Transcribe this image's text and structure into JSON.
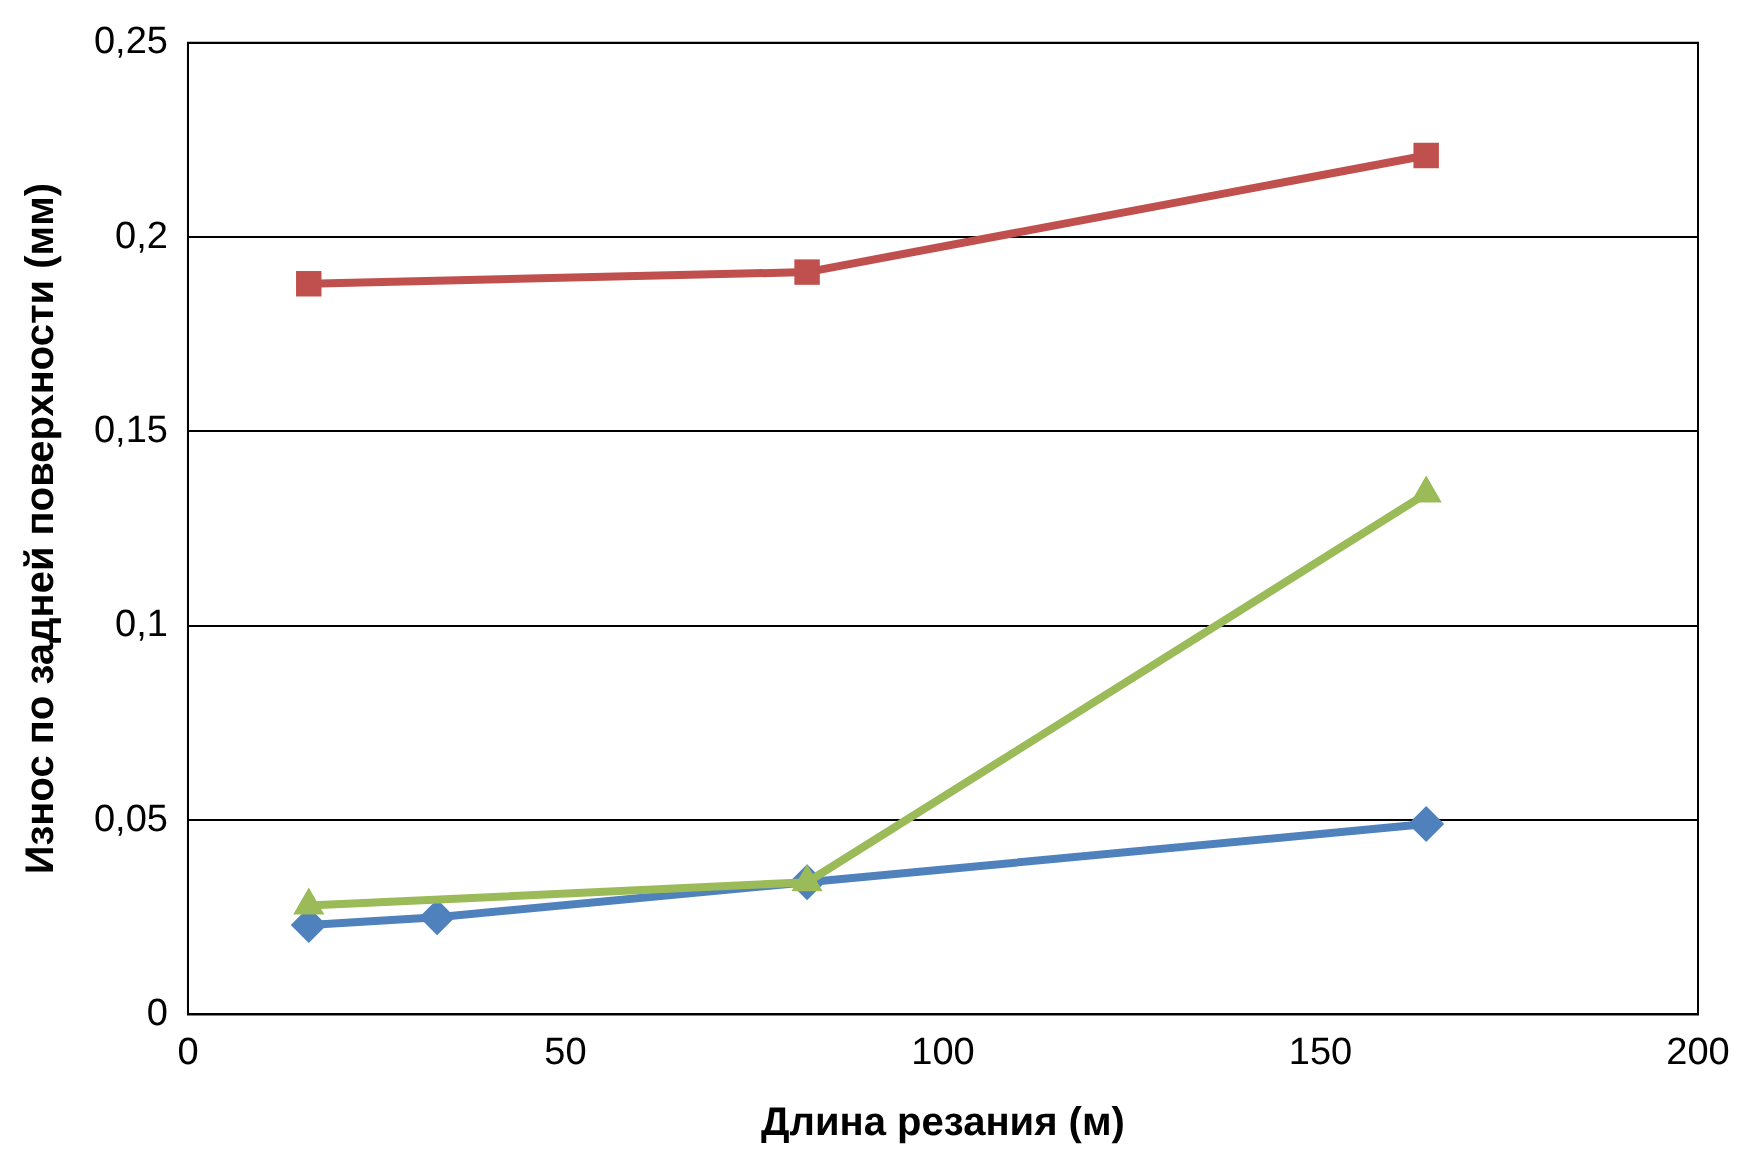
{
  "chart_data": {
    "type": "line",
    "xlabel": "Длина резания (м)",
    "ylabel": "Износ по задней поверхности (мм)",
    "series": [
      {
        "color": "#4f81bd",
        "marker": "diamond",
        "x": [
          16,
          33,
          82,
          164
        ],
        "values": [
          0.023,
          0.025,
          0.034,
          0.049
        ]
      },
      {
        "color": "#c0504d",
        "marker": "square",
        "x": [
          16,
          82,
          164
        ],
        "values": [
          0.188,
          0.191,
          0.221
        ]
      },
      {
        "color": "#9bbb59",
        "marker": "triangle",
        "x": [
          16,
          82,
          164
        ],
        "values": [
          0.028,
          0.034,
          0.134
        ]
      }
    ],
    "xlim": [
      0,
      200
    ],
    "xticks": [
      0,
      50,
      100,
      150,
      200
    ],
    "ylim": [
      0,
      0.25
    ],
    "yticks": [
      0,
      {
        "value": 0.05,
        "label": "0,05"
      },
      {
        "value": 0.1,
        "label": "0,1"
      },
      {
        "value": 0.15,
        "label": "0,15"
      },
      {
        "value": 0.2,
        "label": "0,2"
      },
      {
        "value": 0.25,
        "label": "0,25"
      }
    ],
    "grid": "y",
    "legend": false
  }
}
